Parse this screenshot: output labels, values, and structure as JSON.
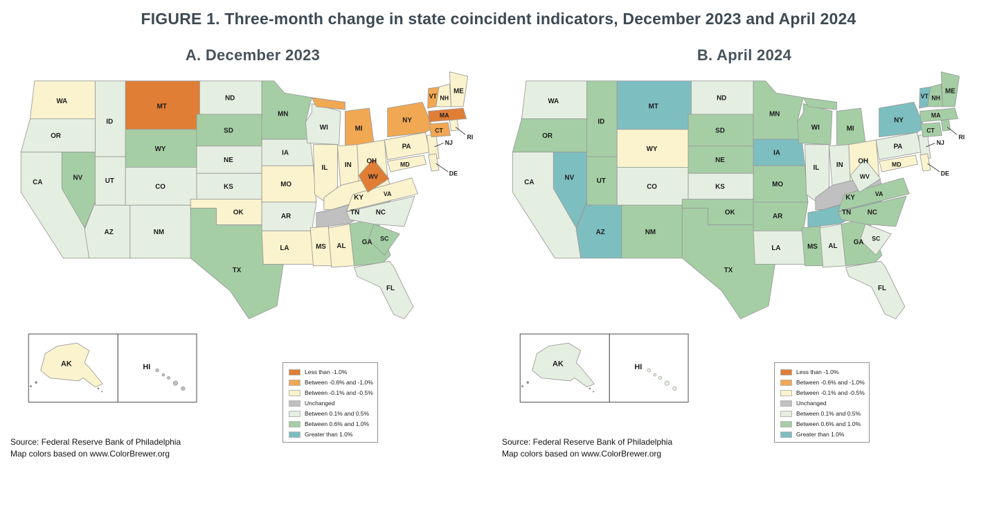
{
  "figure_title": "FIGURE 1. Three-month change in state coincident indicators, December 2023 and April 2024",
  "panels": [
    {
      "id": "december_2023",
      "label": "A. December 2023"
    },
    {
      "id": "april_2024",
      "label": "B. April 2024"
    }
  ],
  "source_lines": [
    "Source: Federal Reserve Bank of Philadelphia",
    "Map colors based on www.ColorBrewer.org"
  ],
  "legend": {
    "items": [
      {
        "label": "Less than -1.0%",
        "color": "#E07E35"
      },
      {
        "label": "Between -0.6% and -1.0%",
        "color": "#F1A852"
      },
      {
        "label": "Between -0.1% and -0.5%",
        "color": "#FBF3CD"
      },
      {
        "label": "Unchanged",
        "color": "#C0C0C0"
      },
      {
        "label": "Between 0.1% and 0.5%",
        "color": "#E5EFE1"
      },
      {
        "label": "Between 0.6% and 1.0%",
        "color": "#A5CEA4"
      },
      {
        "label": "Greater than 1.0%",
        "color": "#7DBEC1"
      }
    ]
  },
  "inset_labels": {
    "alaska": "AK",
    "hawaii": "HI"
  },
  "states": [
    {
      "code": "WA",
      "december_2023": 2,
      "april_2024": 4
    },
    {
      "code": "OR",
      "december_2023": 4,
      "april_2024": 5
    },
    {
      "code": "CA",
      "december_2023": 4,
      "april_2024": 4
    },
    {
      "code": "NV",
      "december_2023": 5,
      "april_2024": 6
    },
    {
      "code": "ID",
      "december_2023": 4,
      "april_2024": 5
    },
    {
      "code": "MT",
      "december_2023": 0,
      "april_2024": 6
    },
    {
      "code": "WY",
      "december_2023": 5,
      "april_2024": 2
    },
    {
      "code": "UT",
      "december_2023": 4,
      "april_2024": 5
    },
    {
      "code": "AZ",
      "december_2023": 4,
      "april_2024": 6
    },
    {
      "code": "CO",
      "december_2023": 4,
      "april_2024": 4
    },
    {
      "code": "NM",
      "december_2023": 4,
      "april_2024": 5
    },
    {
      "code": "ND",
      "december_2023": 4,
      "april_2024": 4
    },
    {
      "code": "SD",
      "december_2023": 5,
      "april_2024": 5
    },
    {
      "code": "NE",
      "december_2023": 4,
      "april_2024": 5
    },
    {
      "code": "KS",
      "december_2023": 4,
      "april_2024": 4
    },
    {
      "code": "OK",
      "december_2023": 2,
      "april_2024": 5
    },
    {
      "code": "TX",
      "december_2023": 5,
      "april_2024": 5
    },
    {
      "code": "MN",
      "december_2023": 5,
      "april_2024": 5
    },
    {
      "code": "IA",
      "december_2023": 4,
      "april_2024": 6
    },
    {
      "code": "MO",
      "december_2023": 2,
      "april_2024": 5
    },
    {
      "code": "AR",
      "december_2023": 4,
      "april_2024": 5
    },
    {
      "code": "LA",
      "december_2023": 2,
      "april_2024": 4
    },
    {
      "code": "WI",
      "december_2023": 4,
      "april_2024": 5
    },
    {
      "code": "IL",
      "december_2023": 2,
      "april_2024": 4
    },
    {
      "code": "MS",
      "december_2023": 2,
      "april_2024": 5
    },
    {
      "code": "MI",
      "december_2023": 1,
      "april_2024": 5
    },
    {
      "code": "IN",
      "december_2023": 2,
      "april_2024": 4
    },
    {
      "code": "OH",
      "december_2023": 2,
      "april_2024": 2
    },
    {
      "code": "KY",
      "december_2023": 2,
      "april_2024": 3
    },
    {
      "code": "TN",
      "december_2023": 3,
      "april_2024": 6
    },
    {
      "code": "AL",
      "december_2023": 2,
      "april_2024": 4
    },
    {
      "code": "GA",
      "december_2023": 5,
      "april_2024": 5
    },
    {
      "code": "FL",
      "december_2023": 4,
      "april_2024": 4
    },
    {
      "code": "SC",
      "december_2023": 5,
      "april_2024": 4
    },
    {
      "code": "NC",
      "december_2023": 4,
      "april_2024": 5
    },
    {
      "code": "VA",
      "december_2023": 2,
      "april_2024": 5
    },
    {
      "code": "WV",
      "december_2023": 0,
      "april_2024": 4
    },
    {
      "code": "PA",
      "december_2023": 2,
      "april_2024": 4
    },
    {
      "code": "NY",
      "december_2023": 1,
      "april_2024": 6
    },
    {
      "code": "NJ",
      "december_2023": 2,
      "april_2024": 4
    },
    {
      "code": "MD",
      "december_2023": 2,
      "april_2024": 2
    },
    {
      "code": "DE",
      "december_2023": 2,
      "april_2024": 2
    },
    {
      "code": "VT",
      "december_2023": 1,
      "april_2024": 6
    },
    {
      "code": "NH",
      "december_2023": 2,
      "april_2024": 5
    },
    {
      "code": "ME",
      "december_2023": 2,
      "april_2024": 5
    },
    {
      "code": "MA",
      "december_2023": 0,
      "april_2024": 5
    },
    {
      "code": "CT",
      "december_2023": 1,
      "april_2024": 5
    },
    {
      "code": "RI",
      "december_2023": 2,
      "april_2024": 5
    },
    {
      "code": "AK",
      "december_2023": 2,
      "april_2024": 4
    },
    {
      "code": "HI",
      "december_2023": 3,
      "april_2024": 4
    }
  ]
}
